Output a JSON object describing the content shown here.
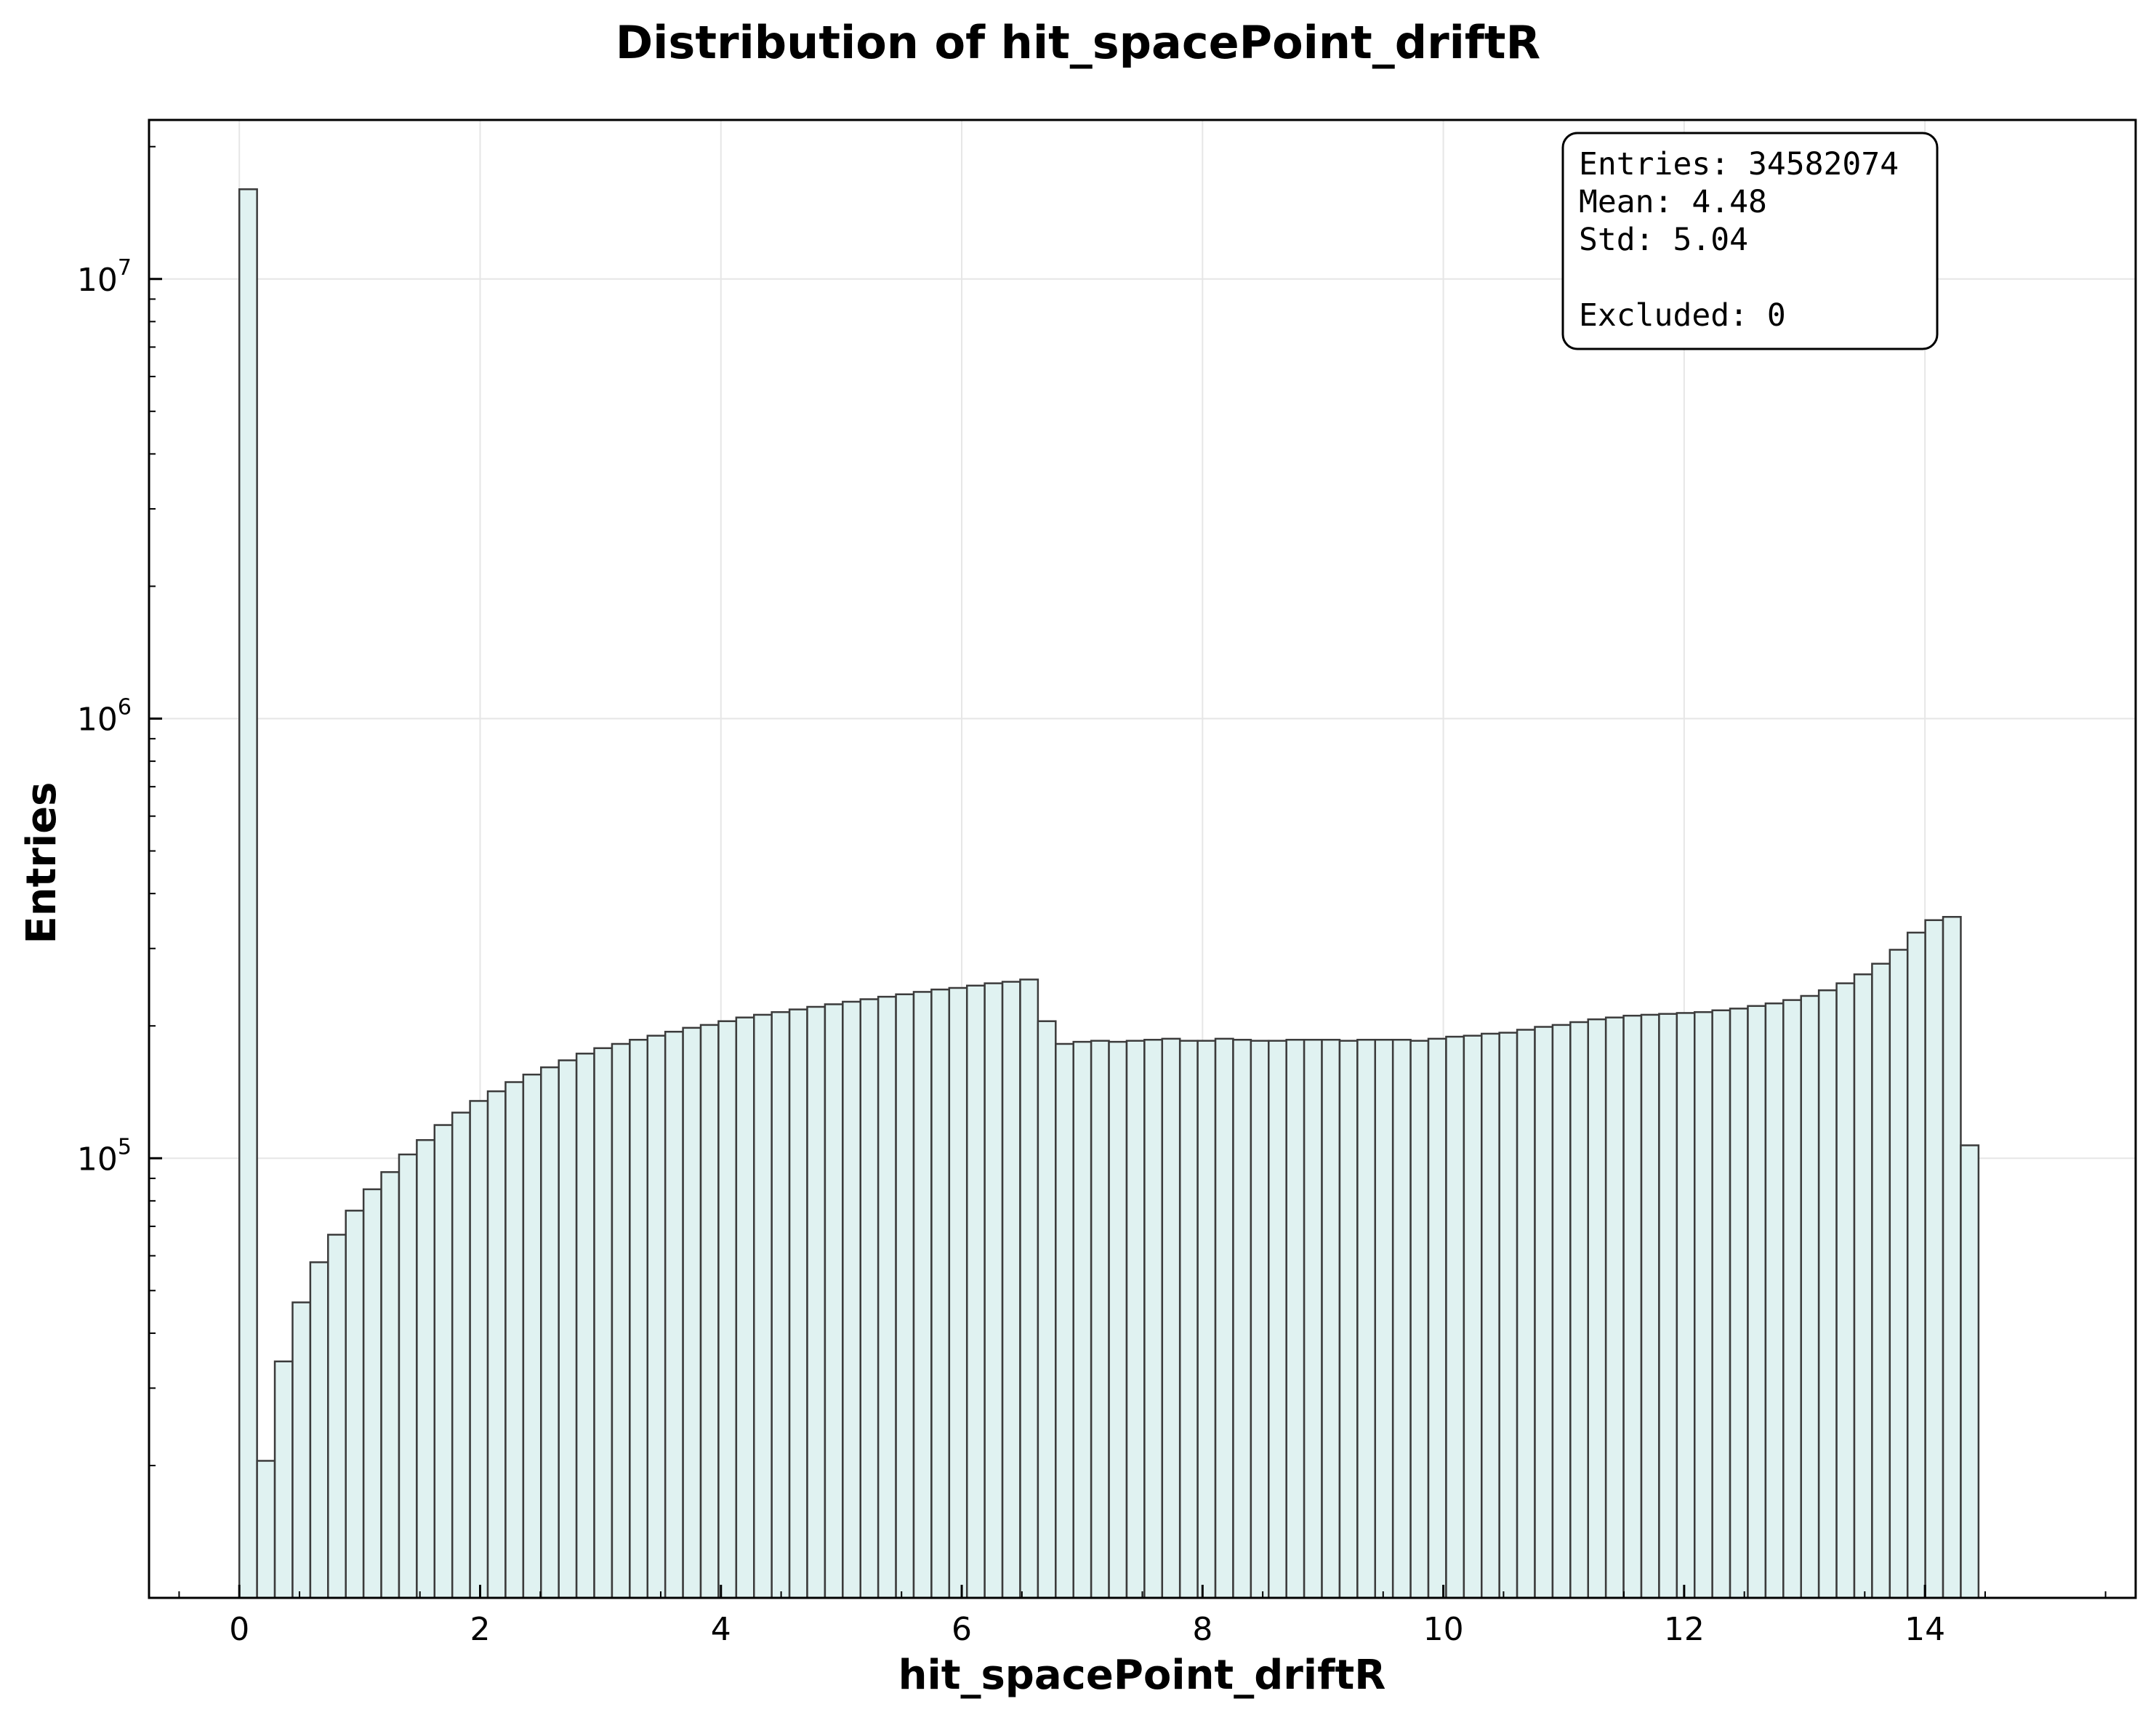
{
  "chart_data": {
    "type": "bar",
    "title": "Distribution of hit_spacePoint_driftR",
    "xlabel": "hit_spacePoint_driftR",
    "ylabel": "Entries",
    "y_scale": "log",
    "grid": true,
    "xlim": [
      -0.75,
      15.75
    ],
    "ylim": [
      10000,
      23000000
    ],
    "x_ticks": [
      "0",
      "2",
      "4",
      "6",
      "8",
      "10",
      "12",
      "14"
    ],
    "y_ticks": [
      {
        "value": 100000,
        "base": "10",
        "exp": "5"
      },
      {
        "value": 1000000,
        "base": "10",
        "exp": "6"
      },
      {
        "value": 10000000,
        "base": "10",
        "exp": "7"
      }
    ],
    "bin_start": 0,
    "bin_width": 0.1474,
    "values": [
      16000000,
      20500,
      34500,
      47000,
      58000,
      67000,
      76000,
      85000,
      93000,
      102000,
      110000,
      119000,
      127000,
      135000,
      142000,
      149000,
      155000,
      161000,
      167000,
      173000,
      178000,
      182000,
      186000,
      190000,
      194000,
      198000,
      201000,
      205000,
      209000,
      212000,
      215000,
      218000,
      221000,
      224000,
      227000,
      230000,
      233000,
      236000,
      239000,
      242000,
      244000,
      247000,
      250000,
      252000,
      255000,
      205000,
      182000,
      184000,
      185000,
      184000,
      185000,
      186000,
      187000,
      185000,
      185000,
      187000,
      186000,
      185000,
      185000,
      186000,
      186000,
      186000,
      185000,
      186000,
      186000,
      186000,
      185000,
      187000,
      189000,
      190000,
      192000,
      193000,
      196000,
      199000,
      201000,
      204000,
      207000,
      209000,
      211000,
      212000,
      213000,
      214000,
      215000,
      217000,
      219000,
      222000,
      225000,
      229000,
      234000,
      241000,
      250000,
      262000,
      277000,
      298000,
      326000,
      348000,
      354000,
      107000
    ],
    "bar_fill": "#e0f2f1",
    "bar_stroke": "#3b3b3b"
  },
  "stats_box": {
    "entries": "Entries: 34582074",
    "mean": "Mean: 4.48",
    "std": "Std: 5.04",
    "excluded": "Excluded: 0"
  }
}
